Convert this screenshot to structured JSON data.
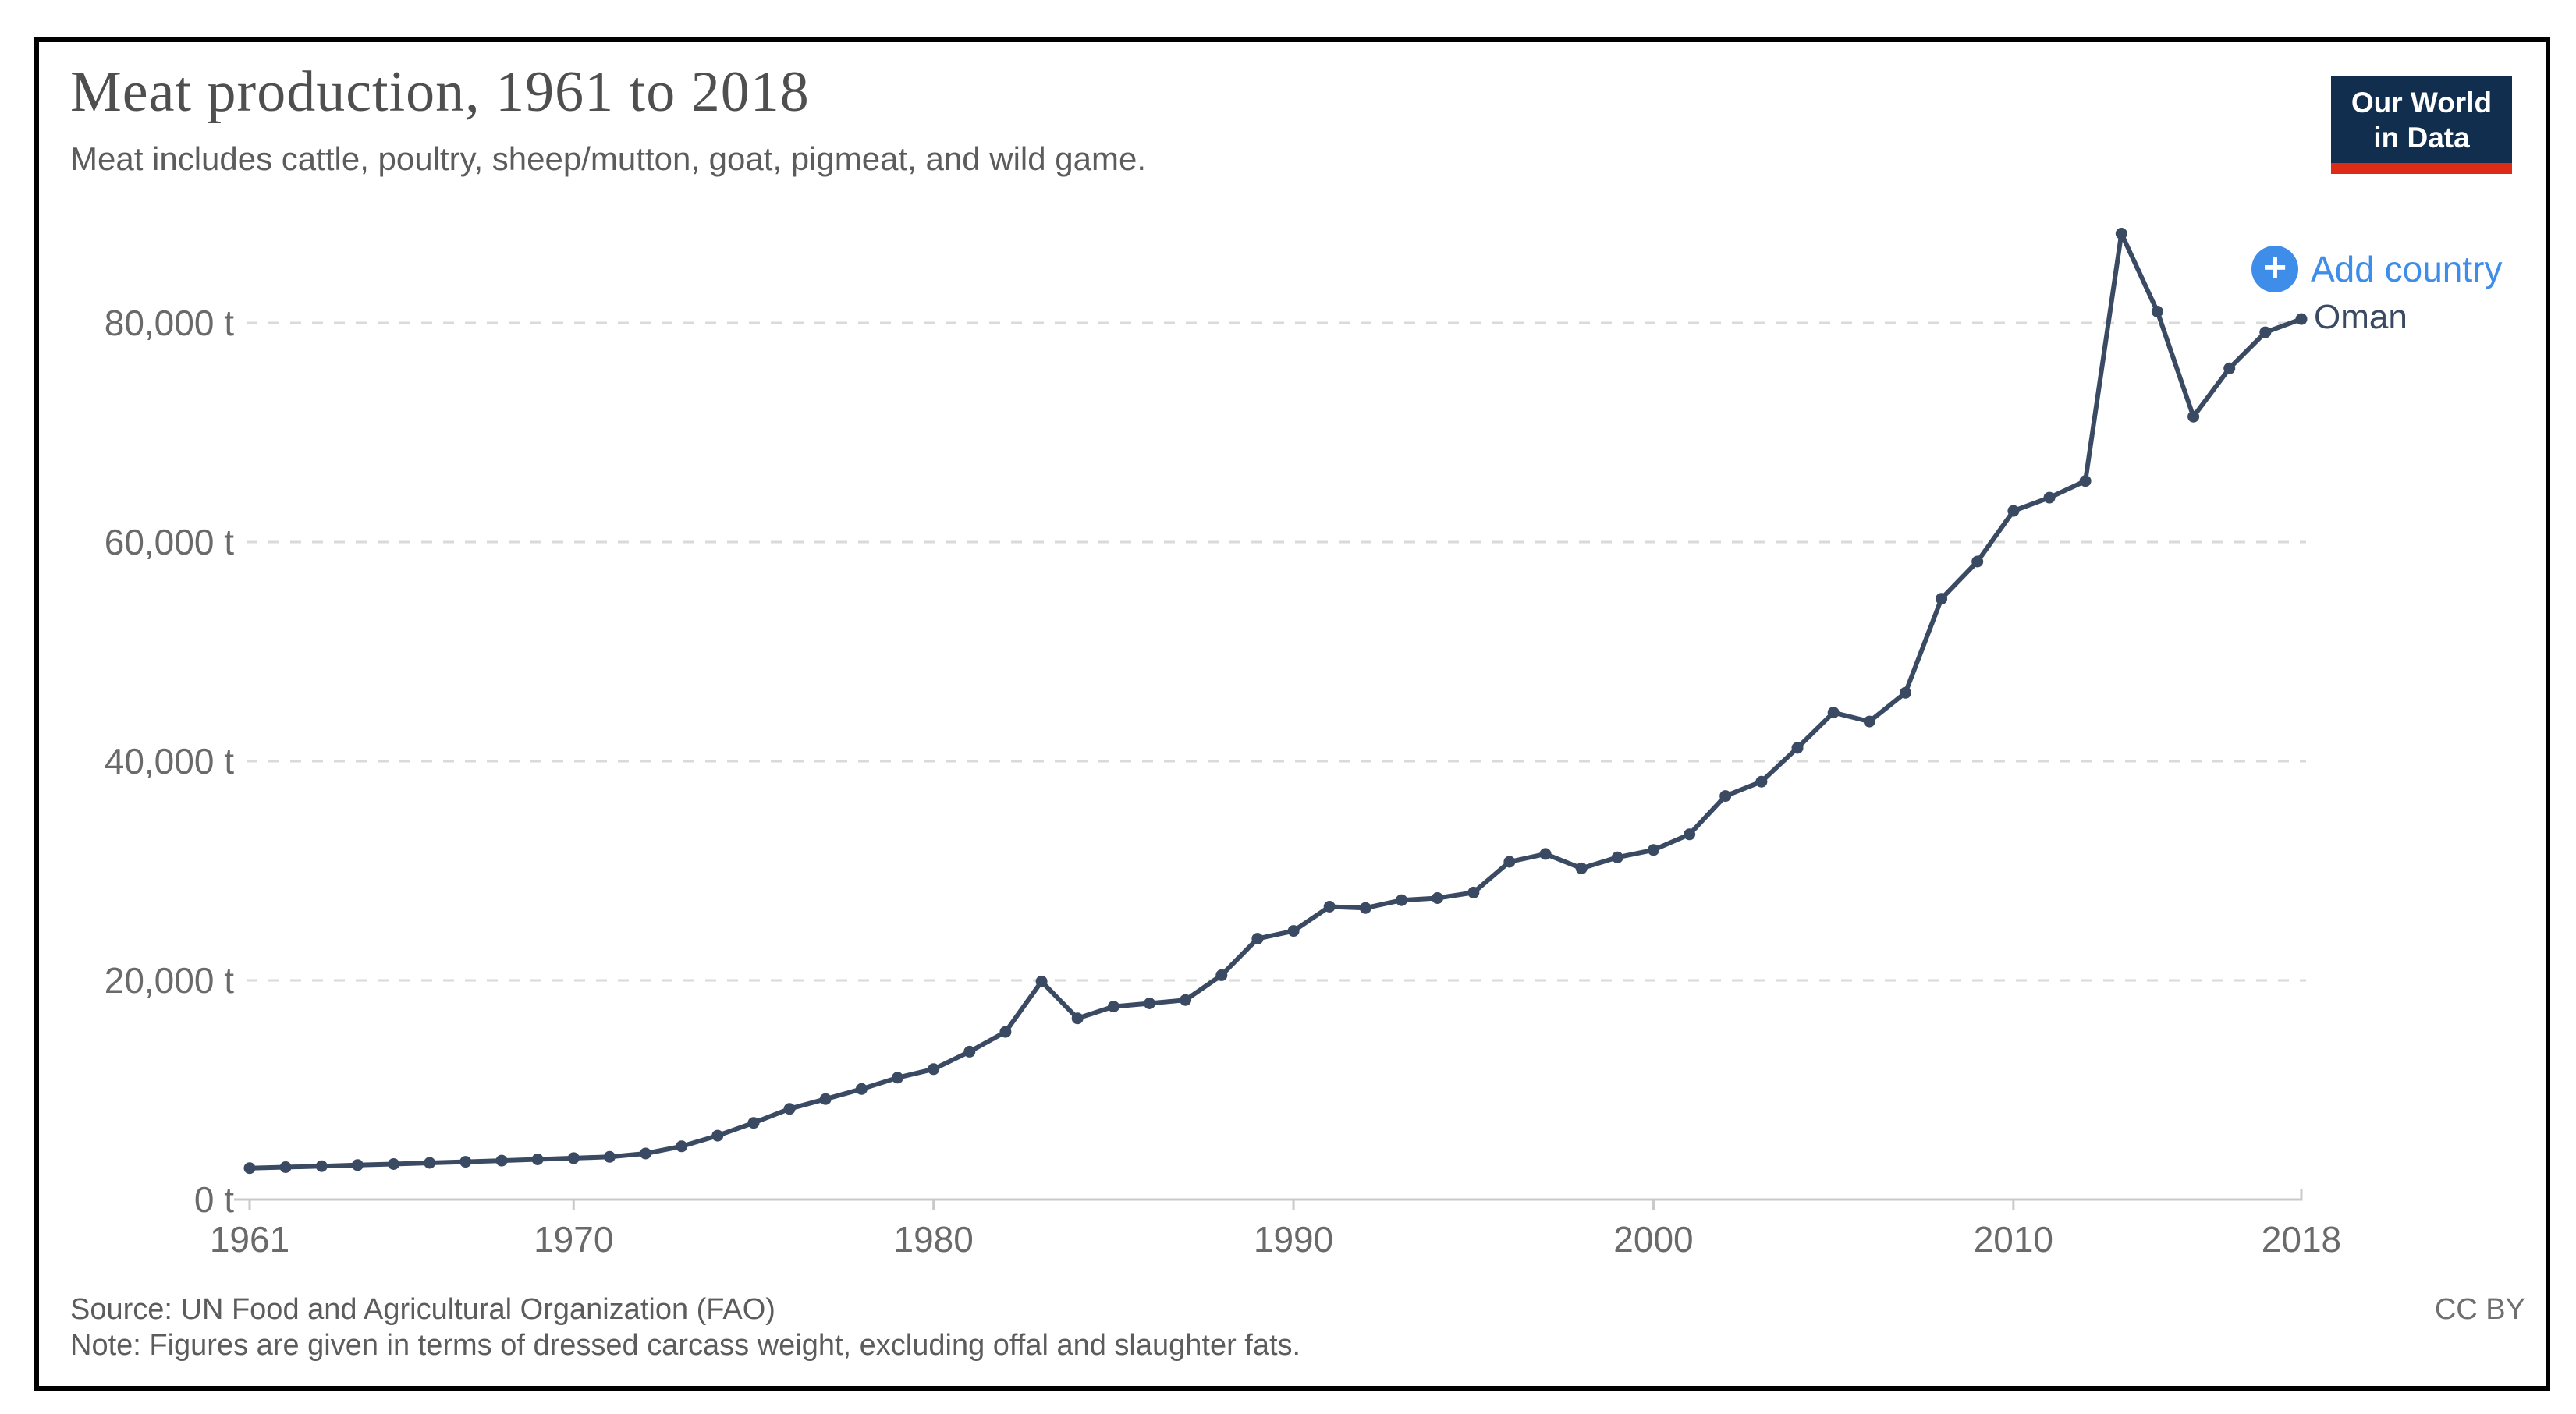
{
  "card": {
    "title": "Meat production, 1961 to 2018",
    "subtitle": "Meat includes cattle, poultry, sheep/mutton, goat, pigmeat, and wild game.",
    "logo": {
      "line1": "Our World",
      "line2": "in Data"
    },
    "add_country_label": "Add country",
    "plus_glyph": "+",
    "series_label": "Oman",
    "footer": {
      "source": "Source: UN Food and Agricultural Organization (FAO)",
      "note": "Note: Figures are given in terms of dressed carcass weight, excluding offal and slaughter fats.",
      "license": "CC BY"
    }
  },
  "colors": {
    "line": "#3a4a63",
    "accent_blue": "#3e8de8",
    "logo_navy": "#112e4f",
    "logo_red": "#dc2c18",
    "grid": "#dadada",
    "axis": "#c9c9c9",
    "tick_text": "#6a6a6a",
    "title_text": "#4f4f4f"
  },
  "chart_data": {
    "type": "line",
    "title": "Meat production, 1961 to 2018",
    "xlabel": "",
    "ylabel": "tonnes",
    "xlim": [
      1961,
      2018
    ],
    "ylim": [
      0,
      90000
    ],
    "grid": "horizontal-dashed",
    "legend_position": "line-end-label",
    "x_ticks": [
      1961,
      1970,
      1980,
      1990,
      2000,
      2010,
      2018
    ],
    "y_ticks": [
      {
        "value": 0,
        "label": "0 t"
      },
      {
        "value": 20000,
        "label": "20,000 t"
      },
      {
        "value": 40000,
        "label": "40,000 t"
      },
      {
        "value": 60000,
        "label": "60,000 t"
      },
      {
        "value": 80000,
        "label": "80,000 t"
      }
    ],
    "series": [
      {
        "name": "Oman",
        "color": "#3a4a63",
        "years": [
          1961,
          1962,
          1963,
          1964,
          1965,
          1966,
          1967,
          1968,
          1969,
          1970,
          1971,
          1972,
          1973,
          1974,
          1975,
          1976,
          1977,
          1978,
          1979,
          1980,
          1981,
          1982,
          1983,
          1984,
          1985,
          1986,
          1987,
          1988,
          1989,
          1990,
          1991,
          1992,
          1993,
          1994,
          1995,
          1996,
          1997,
          1998,
          1999,
          2000,
          2001,
          2002,
          2003,
          2004,
          2005,
          2006,
          2007,
          2008,
          2009,
          2010,
          2011,
          2012,
          2013,
          2014,
          2015,
          2016,
          2017,
          2018
        ],
        "values": [
          2866,
          2956,
          3048,
          3143,
          3241,
          3342,
          3446,
          3553,
          3664,
          3778,
          3896,
          4202,
          4856,
          5831,
          6994,
          8279,
          9165,
          10085,
          11119,
          11900,
          13498,
          15298,
          19903,
          16537,
          17609,
          17902,
          18204,
          20473,
          23802,
          24509,
          26729,
          26606,
          27318,
          27508,
          28016,
          30818,
          31534,
          30219,
          31226,
          31903,
          33322,
          36829,
          38135,
          41217,
          44438,
          43622,
          46244,
          54824,
          58222,
          62838,
          64050,
          65571,
          88147,
          81030,
          71442,
          75848,
          79136,
          80351
        ]
      }
    ]
  }
}
